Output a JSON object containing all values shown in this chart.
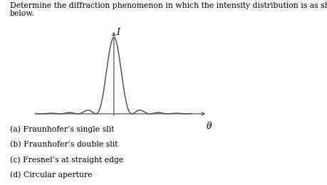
{
  "title_text": "Determine the diffraction phenomenon in which the intensity distribution is as shown\nbelow.",
  "xlabel": "θ",
  "ylabel": "I",
  "options": [
    "(a) Fraunhofer’s single slit",
    "(b) Fraunhofer’s double slit",
    "(c) Fresnel’s at straight edge",
    "(d) Circular aperture"
  ],
  "background_color": "#ffffff",
  "line_color": "#555555",
  "text_color": "#000000",
  "xlim": [
    -4.5,
    5.5
  ],
  "ylim": [
    -0.06,
    1.15
  ],
  "figsize": [
    4.6,
    2.6
  ],
  "dpi": 100,
  "title_fontsize": 7.8,
  "option_fontsize": 7.8,
  "axis_label_fontsize": 9
}
